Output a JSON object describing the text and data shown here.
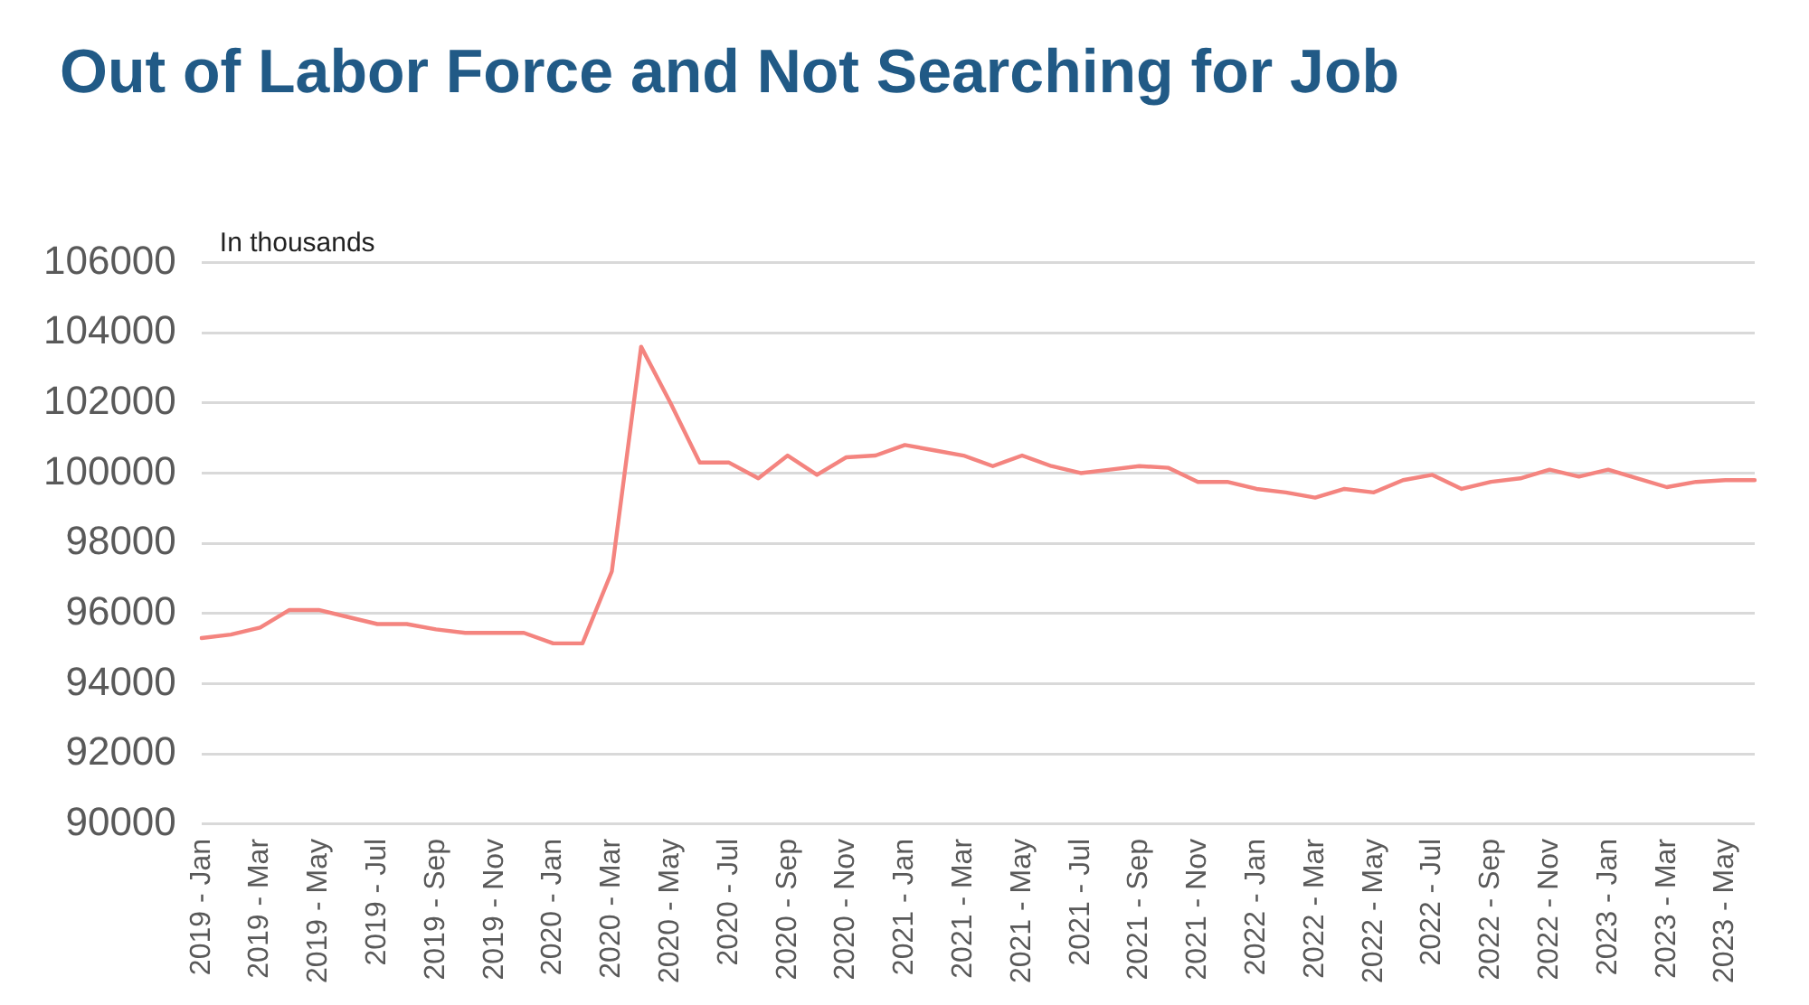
{
  "chart_data": {
    "type": "line",
    "title": "Out of Labor Force and Not Searching for Job",
    "annotations": [
      "In thousands"
    ],
    "categories": [
      "2019 - Jan",
      null,
      "2019 - Mar",
      null,
      "2019 - May",
      null,
      "2019 - Jul",
      null,
      "2019 - Sep",
      null,
      "2019 - Nov",
      null,
      "2020 - Jan",
      null,
      "2020 - Mar",
      null,
      "2020 - May",
      null,
      "2020 - Jul",
      null,
      "2020 - Sep",
      null,
      "2020 - Nov",
      null,
      "2021 - Jan",
      null,
      "2021 - Mar",
      null,
      "2021 - May",
      null,
      "2021 - Jul",
      null,
      "2021 - Sep",
      null,
      "2021 - Nov",
      null,
      "2022 - Jan",
      null,
      "2022 - Mar",
      null,
      "2022 - May",
      null,
      "2022 - Jul",
      null,
      "2022 - Sep",
      null,
      "2022 - Nov",
      null,
      "2023 - Jan",
      null,
      "2023 - Mar",
      null,
      "2023 - May",
      null
    ],
    "series": [
      {
        "color": "#f4847f",
        "values": [
          95300,
          95400,
          95600,
          96100,
          96100,
          95900,
          95700,
          95700,
          95550,
          95450,
          95450,
          95450,
          95150,
          95150,
          97200,
          103600,
          102000,
          100300,
          100300,
          99850,
          100500,
          99950,
          100450,
          100500,
          100800,
          100650,
          100500,
          100200,
          100500,
          100200,
          100000,
          100100,
          100200,
          100150,
          99750,
          99750,
          99550,
          99450,
          99300,
          99550,
          99450,
          99800,
          99950,
          99550,
          99750,
          99850,
          100100,
          99900,
          100100,
          99850,
          99600,
          99750,
          99800,
          99800
        ]
      }
    ],
    "ylim": [
      90000,
      106000
    ],
    "yticks": [
      90000,
      92000,
      94000,
      96000,
      98000,
      100000,
      102000,
      104000,
      106000
    ],
    "grid": "y",
    "legend": false,
    "marker": "none",
    "line_style": "solid"
  }
}
